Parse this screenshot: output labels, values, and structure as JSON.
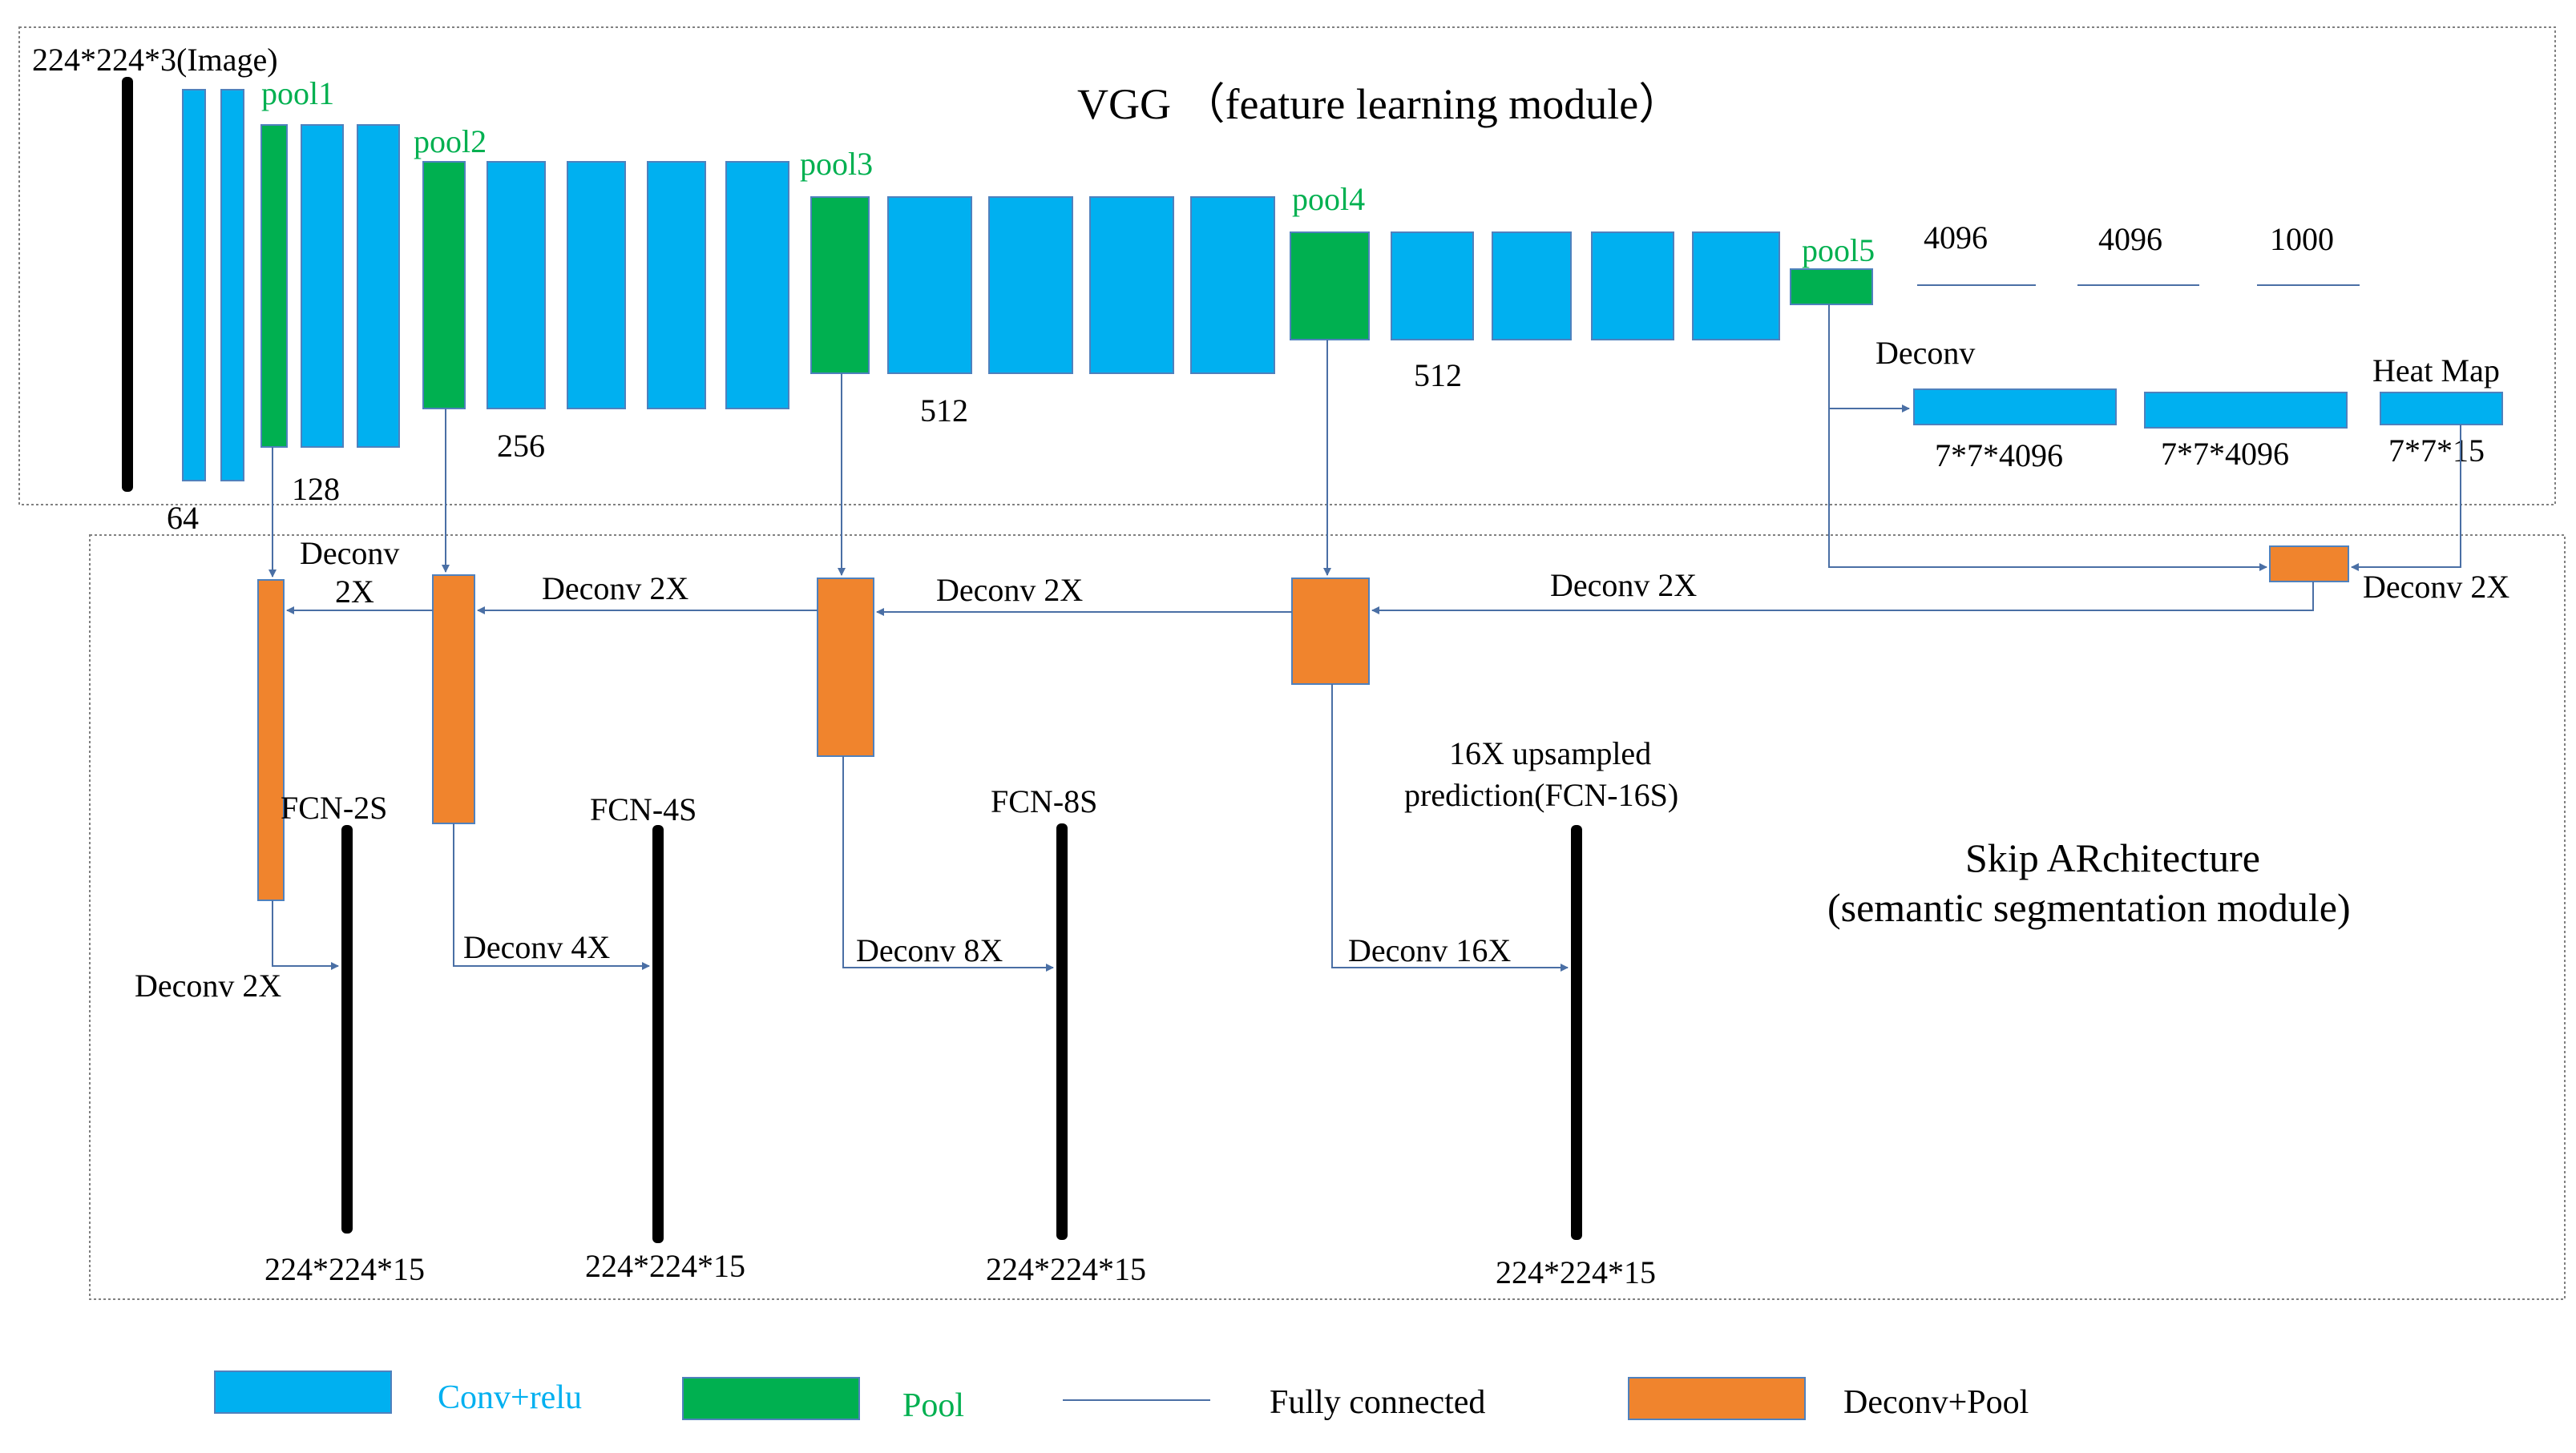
{
  "vgg": {
    "title": "VGG （feature learning module）",
    "input_label": "224*224*3(Image)",
    "channels": {
      "c64": "64",
      "c128": "128",
      "c256": "256",
      "c512a": "512",
      "c512b": "512"
    },
    "pools": {
      "p1": "pool1",
      "p2": "pool2",
      "p3": "pool3",
      "p4": "pool4",
      "p5": "pool5"
    },
    "fc": {
      "f1": "4096",
      "f2": "4096",
      "f3": "1000"
    },
    "deconv_label": "Deconv",
    "heatmap_label": "Heat Map",
    "deconv_dims": {
      "d1": "7*7*4096",
      "d2": "7*7*4096",
      "d3": "7*7*15"
    }
  },
  "skip": {
    "title_line1": "Skip  ARchitecture",
    "title_line2": "(semantic segmentation module)",
    "deconv2x": "Deconv 2X",
    "deconv_word": "Deconv",
    "two_x": "2X",
    "deconv4x": "Deconv 4X",
    "deconv8x": "Deconv 8X",
    "deconv16x": "Deconv 16X",
    "fcn2s": "FCN-2S",
    "fcn4s": "FCN-4S",
    "fcn8s": "FCN-8S",
    "fcn16s_line1": "16X upsampled",
    "fcn16s_line2": "prediction(FCN-16S)",
    "out_dim": "224*224*15"
  },
  "legend": {
    "conv": "Conv+relu",
    "pool": "Pool",
    "fc": "Fully connected",
    "deconv": "Deconv+Pool"
  },
  "colors": {
    "conv": "#00B0F0",
    "pool": "#00B050",
    "deconv": "#F0842D",
    "line": "#4A6FA5"
  }
}
